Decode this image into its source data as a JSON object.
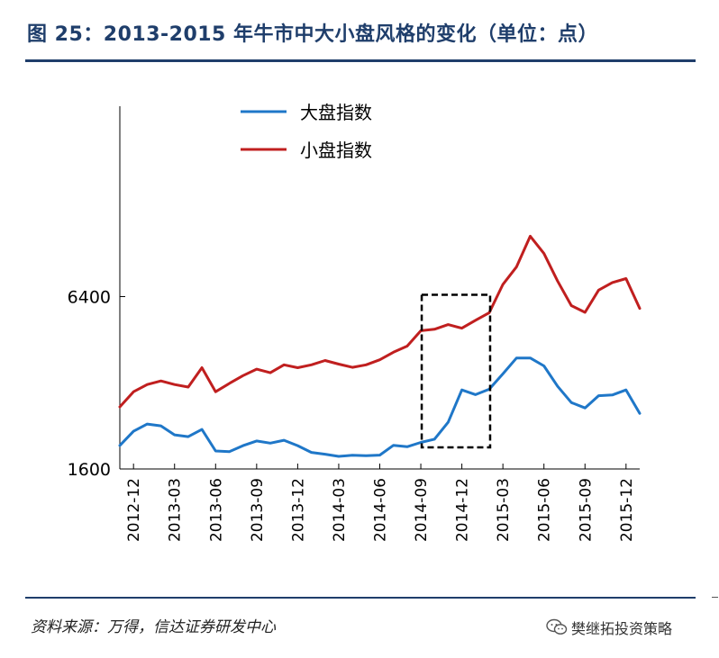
{
  "title": "图 25：2013-2015 年牛市中大小盘风格的变化（单位：点）",
  "source": "资料来源：万得，信达证券研发中心",
  "watermark": "樊继拓投资策略",
  "icons": {
    "watermark": "wechat-icon"
  },
  "colors": {
    "large_cap": "#1f77c8",
    "small_cap": "#c01f1f",
    "title": "#1f3e6b",
    "highlight_box": "#000000"
  },
  "chart_data": {
    "type": "line",
    "title": "图 25：2013-2015 年牛市中大小盘风格的变化（单位：点）",
    "xlabel": "",
    "ylabel": "",
    "x_tick_labels": [
      "2012-12",
      "2013-03",
      "2013-06",
      "2013-09",
      "2013-12",
      "2014-03",
      "2014-06",
      "2014-09",
      "2014-12",
      "2015-03",
      "2015-06",
      "2015-09",
      "2015-12"
    ],
    "y_tick_labels": [
      "1600",
      "6400"
    ],
    "ylim": [
      1600,
      11700
    ],
    "grid": false,
    "legend_position": "top-left",
    "highlight_box": {
      "x_from": "2014-09",
      "x_to": "2015-02",
      "y_from": 2200,
      "y_to": 6450,
      "style": "dashed"
    },
    "x": [
      "2012-11",
      "2012-12",
      "2013-01",
      "2013-02",
      "2013-03",
      "2013-04",
      "2013-05",
      "2013-06",
      "2013-07",
      "2013-08",
      "2013-09",
      "2013-10",
      "2013-11",
      "2013-12",
      "2014-01",
      "2014-02",
      "2014-03",
      "2014-04",
      "2014-05",
      "2014-06",
      "2014-07",
      "2014-08",
      "2014-09",
      "2014-10",
      "2014-11",
      "2014-12",
      "2015-01",
      "2015-02",
      "2015-03",
      "2015-04",
      "2015-05",
      "2015-06",
      "2015-07",
      "2015-08",
      "2015-09",
      "2015-10",
      "2015-11",
      "2015-12",
      "2016-01"
    ],
    "series": [
      {
        "name": "大盘指数",
        "color": "#1f77c8",
        "values": [
          2255,
          2650,
          2850,
          2800,
          2550,
          2500,
          2700,
          2100,
          2080,
          2250,
          2380,
          2320,
          2400,
          2250,
          2060,
          2010,
          1950,
          1980,
          1970,
          1985,
          2260,
          2220,
          2340,
          2430,
          2900,
          3800,
          3670,
          3820,
          4250,
          4690,
          4690,
          4470,
          3900,
          3450,
          3300,
          3640,
          3660,
          3800,
          3150
        ]
      },
      {
        "name": "小盘指数",
        "color": "#c01f1f",
        "values": [
          3330,
          3750,
          3950,
          4050,
          3950,
          3880,
          4420,
          3750,
          3980,
          4200,
          4380,
          4280,
          4500,
          4420,
          4500,
          4620,
          4520,
          4430,
          4500,
          4640,
          4850,
          5020,
          5450,
          5490,
          5620,
          5520,
          5740,
          5950,
          6740,
          7230,
          8080,
          7600,
          6830,
          6150,
          5960,
          6580,
          6790,
          6900,
          6070
        ]
      }
    ]
  }
}
